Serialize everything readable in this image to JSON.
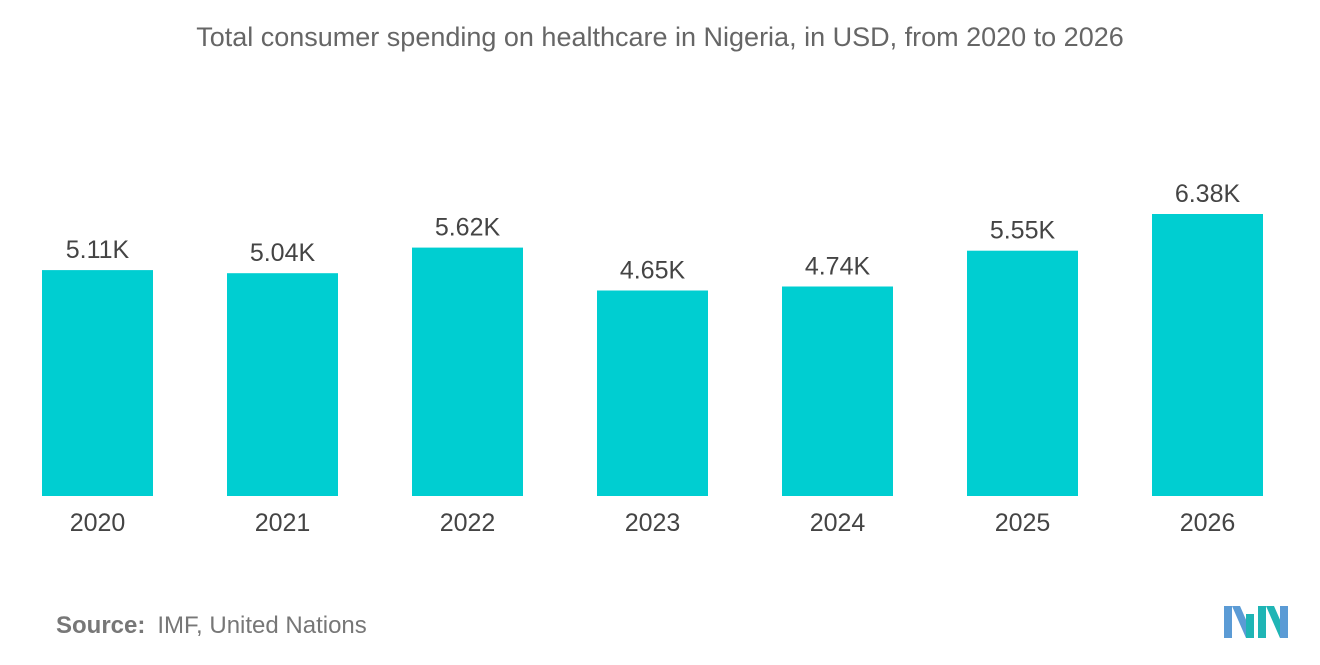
{
  "chart_data": {
    "type": "bar",
    "title": "Total consumer spending on healthcare in Nigeria, in USD, from 2020 to 2026",
    "categories": [
      "2020",
      "2021",
      "2022",
      "2023",
      "2024",
      "2025",
      "2026"
    ],
    "values": [
      5.11,
      5.04,
      5.62,
      4.65,
      4.74,
      5.55,
      6.38
    ],
    "value_labels": [
      "5.11K",
      "5.04K",
      "5.62K",
      "4.65K",
      "4.74K",
      "5.55K",
      "6.38K"
    ],
    "unit": "K",
    "xlabel": "",
    "ylabel": "",
    "ylim": [
      0,
      7
    ],
    "grid": false,
    "legend": "none",
    "bar_color": "#00CED1"
  },
  "source": {
    "label": "Source:",
    "text": "IMF, United Nations"
  },
  "logo": {
    "icon": "mordor-intelligence-logo-icon",
    "colors": [
      "#5B9BD5",
      "#1FB5B5"
    ]
  }
}
